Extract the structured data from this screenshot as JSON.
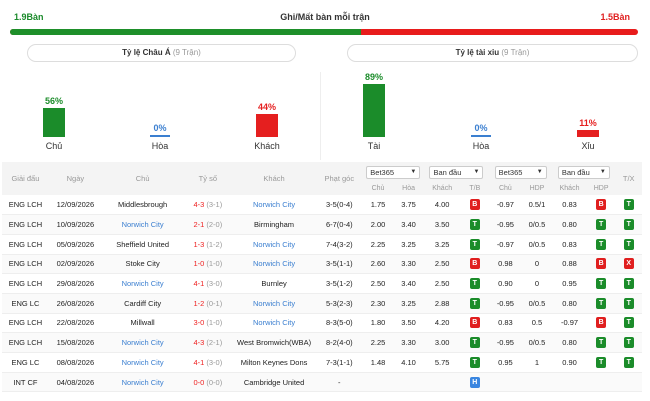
{
  "header": {
    "left_value": "1.9Bàn",
    "title": "Ghi/Mất bàn mỗi trận",
    "right_value": "1.5Bàn",
    "bar_green_fraction": 0.559
  },
  "tabs": {
    "left_label": "Tỷ lệ Châu Á",
    "left_sub": "(9 Trận)",
    "right_label": "Tỷ lệ tài xỉu",
    "right_sub": "(9 Trận)"
  },
  "asian": [
    {
      "pct": "56%",
      "label": "Chủ",
      "value": 56,
      "color": "#1b8c2a"
    },
    {
      "pct": "0%",
      "label": "Hòa",
      "value": 0,
      "color": "#3b7fd0"
    },
    {
      "pct": "44%",
      "label": "Khách",
      "value": 44,
      "color": "#e51f1f"
    }
  ],
  "overunder": [
    {
      "pct": "89%",
      "label": "Tài",
      "value": 89,
      "color": "#1b8c2a"
    },
    {
      "pct": "0%",
      "label": "Hòa",
      "value": 0,
      "color": "#3b7fd0"
    },
    {
      "pct": "11%",
      "label": "Xỉu",
      "value": 11,
      "color": "#e51f1f"
    }
  ],
  "table": {
    "headers": {
      "league": "Giải đấu",
      "date": "Ngày",
      "home": "Chủ",
      "score": "Tỷ số",
      "away": "Khách",
      "corner": "Phạt góc",
      "book1": "Bet365",
      "type1": "Ban đầu",
      "book2": "Bet365",
      "type2": "Ban đầu",
      "tx": "T/X"
    },
    "subheaders": {
      "o1": "Chủ",
      "o2": "Hòa",
      "o3": "Khách",
      "o4": "T/B",
      "a1": "Chủ",
      "a2": "HDP",
      "a3": "Khách",
      "a4": "HDP"
    },
    "rows": [
      {
        "league": "ENG LCH",
        "date": "12/09/2026",
        "home": "Middlesbrough",
        "score": "4-3 (3-1)",
        "away": "Norwich City",
        "corner": "3-5(0-4)",
        "o1": "1.75",
        "o2": "3.75",
        "o3": "4.00",
        "tb": "B",
        "a1": "-0.97",
        "a2": "0.5/1",
        "a3": "0.83",
        "hdp": "B",
        "tx": "T",
        "home_link": false,
        "away_link": true
      },
      {
        "league": "ENG LCH",
        "date": "10/09/2026",
        "home": "Norwich City",
        "score": "2-1 (2-0)",
        "away": "Birmingham",
        "corner": "6-7(0-4)",
        "o1": "2.00",
        "o2": "3.40",
        "o3": "3.50",
        "tb": "T",
        "a1": "-0.95",
        "a2": "0/0.5",
        "a3": "0.80",
        "hdp": "T",
        "tx": "T",
        "home_link": true,
        "away_link": false
      },
      {
        "league": "ENG LCH",
        "date": "05/09/2026",
        "home": "Sheffield United",
        "score": "1-3 (1-2)",
        "away": "Norwich City",
        "corner": "7-4(3-2)",
        "o1": "2.25",
        "o2": "3.25",
        "o3": "3.25",
        "tb": "T",
        "a1": "-0.97",
        "a2": "0/0.5",
        "a3": "0.83",
        "hdp": "T",
        "tx": "T",
        "home_link": false,
        "away_link": true
      },
      {
        "league": "ENG LCH",
        "date": "02/09/2026",
        "home": "Stoke City",
        "score": "1-0 (1-0)",
        "away": "Norwich City",
        "corner": "3-5(1-1)",
        "o1": "2.60",
        "o2": "3.30",
        "o3": "2.50",
        "tb": "B",
        "a1": "0.98",
        "a2": "0",
        "a3": "0.88",
        "hdp": "B",
        "tx": "X",
        "home_link": false,
        "away_link": true
      },
      {
        "league": "ENG LCH",
        "date": "29/08/2026",
        "home": "Norwich City",
        "score": "4-1 (3-0)",
        "away": "Burnley",
        "corner": "3-5(1-2)",
        "o1": "2.50",
        "o2": "3.40",
        "o3": "2.50",
        "tb": "T",
        "a1": "0.90",
        "a2": "0",
        "a3": "0.95",
        "hdp": "T",
        "tx": "T",
        "home_link": true,
        "away_link": false
      },
      {
        "league": "ENG LC",
        "date": "26/08/2026",
        "home": "Cardiff City",
        "score": "1-2 (0-1)",
        "away": "Norwich City",
        "corner": "5-3(2-3)",
        "o1": "2.30",
        "o2": "3.25",
        "o3": "2.88",
        "tb": "T",
        "a1": "-0.95",
        "a2": "0/0.5",
        "a3": "0.80",
        "hdp": "T",
        "tx": "T",
        "home_link": false,
        "away_link": true
      },
      {
        "league": "ENG LCH",
        "date": "22/08/2026",
        "home": "Millwall",
        "score": "3-0 (1-0)",
        "away": "Norwich City",
        "corner": "8-3(5-0)",
        "o1": "1.80",
        "o2": "3.50",
        "o3": "4.20",
        "tb": "B",
        "a1": "0.83",
        "a2": "0.5",
        "a3": "-0.97",
        "hdp": "B",
        "tx": "T",
        "home_link": false,
        "away_link": true
      },
      {
        "league": "ENG LCH",
        "date": "15/08/2026",
        "home": "Norwich City",
        "score": "4-3 (2-1)",
        "away": "West Bromwich(WBA)",
        "corner": "8-2(4-0)",
        "o1": "2.25",
        "o2": "3.30",
        "o3": "3.00",
        "tb": "T",
        "a1": "-0.95",
        "a2": "0/0.5",
        "a3": "0.80",
        "hdp": "T",
        "tx": "T",
        "home_link": true,
        "away_link": false
      },
      {
        "league": "ENG LC",
        "date": "08/08/2026",
        "home": "Norwich City",
        "score": "4-1 (3-0)",
        "away": "Milton Keynes Dons",
        "corner": "7-3(1-1)",
        "o1": "1.48",
        "o2": "4.10",
        "o3": "5.75",
        "tb": "T",
        "a1": "0.95",
        "a2": "1",
        "a3": "0.90",
        "hdp": "T",
        "tx": "T",
        "home_link": true,
        "away_link": false
      },
      {
        "league": "INT CF",
        "date": "04/08/2026",
        "home": "Norwich City",
        "score": "0-0 (0-0)",
        "away": "Cambridge United",
        "corner": "-",
        "o1": "",
        "o2": "",
        "o3": "",
        "tb": "H",
        "a1": "",
        "a2": "",
        "a3": "",
        "hdp": "",
        "tx": "",
        "home_link": true,
        "away_link": false
      }
    ]
  }
}
